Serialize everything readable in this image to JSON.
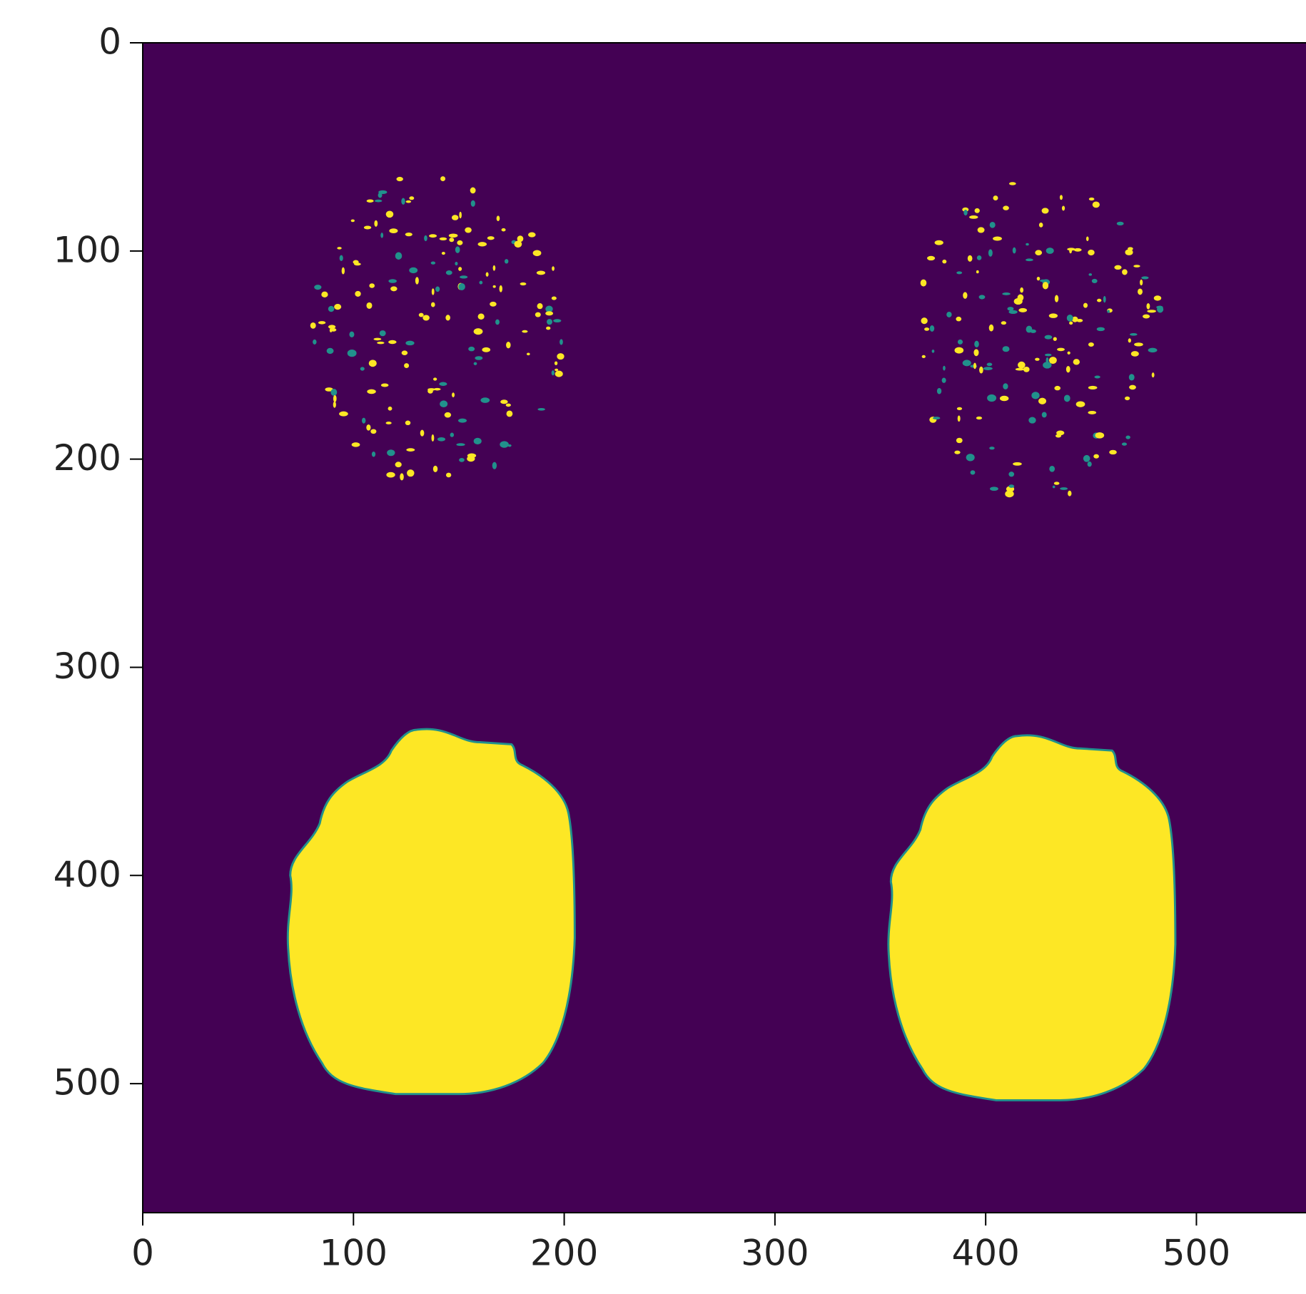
{
  "chart_data": {
    "type": "image",
    "xlim": [
      0,
      552
    ],
    "ylim": [
      562,
      0
    ],
    "xticks": [
      0,
      100,
      200,
      300,
      400,
      500
    ],
    "yticks": [
      0,
      100,
      200,
      300,
      400,
      500
    ],
    "colors": {
      "background": "#440154",
      "foreground": "#fde725",
      "edge": "#21918c"
    }
  }
}
